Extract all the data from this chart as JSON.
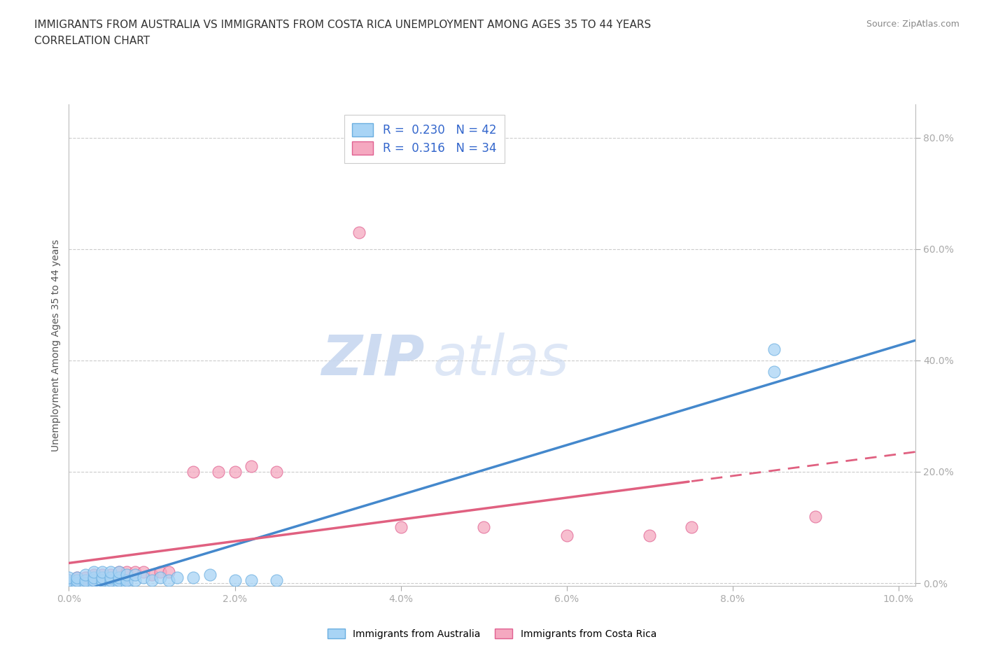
{
  "title_line1": "IMMIGRANTS FROM AUSTRALIA VS IMMIGRANTS FROM COSTA RICA UNEMPLOYMENT AMONG AGES 35 TO 44 YEARS",
  "title_line2": "CORRELATION CHART",
  "source_text": "Source: ZipAtlas.com",
  "xlabel_ticks": [
    "0.0%",
    "2.0%",
    "4.0%",
    "6.0%",
    "8.0%",
    "10.0%"
  ],
  "ylabel_label": "Unemployment Among Ages 35 to 44 years",
  "right_yticks_labels": [
    "0.0%",
    "20.0%",
    "40.0%",
    "60.0%",
    "80.0%"
  ],
  "right_yticks_vals": [
    0.0,
    0.2,
    0.4,
    0.6,
    0.8
  ],
  "watermark_zip": "ZIP",
  "watermark_atlas": "atlas",
  "australia_r": 0.23,
  "australia_n": 42,
  "costarica_r": 0.316,
  "costarica_n": 34,
  "australia_color": "#A8D4F5",
  "australia_edge": "#6AAEE0",
  "costarica_color": "#F5A8C0",
  "costarica_edge": "#E06090",
  "trend_australia_color": "#4488CC",
  "trend_costarica_color": "#E06080",
  "xlim": [
    0.0,
    0.102
  ],
  "ylim": [
    -0.005,
    0.86
  ],
  "x_tick_vals": [
    0.0,
    0.02,
    0.04,
    0.06,
    0.08,
    0.1
  ],
  "australia_x": [
    0.0,
    0.0,
    0.0,
    0.001,
    0.001,
    0.001,
    0.002,
    0.002,
    0.002,
    0.003,
    0.003,
    0.003,
    0.003,
    0.004,
    0.004,
    0.004,
    0.004,
    0.005,
    0.005,
    0.005,
    0.005,
    0.006,
    0.006,
    0.006,
    0.006,
    0.007,
    0.007,
    0.007,
    0.008,
    0.008,
    0.009,
    0.01,
    0.011,
    0.012,
    0.013,
    0.015,
    0.017,
    0.02,
    0.022,
    0.025,
    0.085,
    0.085
  ],
  "australia_y": [
    0.0,
    0.005,
    0.01,
    0.0,
    0.005,
    0.01,
    0.0,
    0.005,
    0.015,
    0.0,
    0.005,
    0.01,
    0.02,
    0.0,
    0.005,
    0.01,
    0.02,
    0.0,
    0.005,
    0.01,
    0.02,
    0.0,
    0.005,
    0.01,
    0.02,
    0.0,
    0.005,
    0.015,
    0.005,
    0.015,
    0.01,
    0.005,
    0.01,
    0.005,
    0.01,
    0.01,
    0.015,
    0.005,
    0.005,
    0.005,
    0.42,
    0.38
  ],
  "costarica_x": [
    0.0,
    0.0,
    0.001,
    0.001,
    0.002,
    0.002,
    0.003,
    0.003,
    0.003,
    0.004,
    0.004,
    0.005,
    0.005,
    0.006,
    0.006,
    0.007,
    0.007,
    0.008,
    0.009,
    0.01,
    0.011,
    0.012,
    0.015,
    0.018,
    0.02,
    0.022,
    0.025,
    0.035,
    0.04,
    0.05,
    0.06,
    0.07,
    0.075,
    0.09
  ],
  "costarica_y": [
    0.0,
    0.005,
    0.0,
    0.01,
    0.0,
    0.01,
    0.0,
    0.005,
    0.015,
    0.005,
    0.015,
    0.0,
    0.015,
    0.005,
    0.02,
    0.005,
    0.02,
    0.02,
    0.02,
    0.015,
    0.02,
    0.02,
    0.2,
    0.2,
    0.2,
    0.21,
    0.2,
    0.63,
    0.1,
    0.1,
    0.085,
    0.085,
    0.1,
    0.12
  ]
}
